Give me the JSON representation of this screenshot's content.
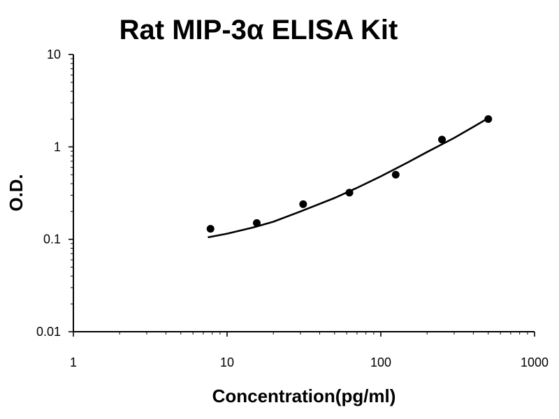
{
  "chart_data": {
    "type": "scatter",
    "title": "Rat MIP-3α ELISA Kit",
    "xlabel": "Concentration(pg/ml)",
    "ylabel": "O.D.",
    "x_scale": "log",
    "y_scale": "log",
    "xlim": [
      1,
      1000
    ],
    "ylim": [
      0.01,
      10
    ],
    "x_ticks": [
      "1",
      "10",
      "100",
      "1000"
    ],
    "y_ticks": [
      "0.01",
      "0.1",
      "1",
      "10"
    ],
    "grid": false,
    "legend": "none",
    "series": [
      {
        "points": [
          {
            "x": 7.8,
            "y": 0.13
          },
          {
            "x": 15.6,
            "y": 0.15
          },
          {
            "x": 31.25,
            "y": 0.24
          },
          {
            "x": 62.5,
            "y": 0.32
          },
          {
            "x": 125,
            "y": 0.5
          },
          {
            "x": 250,
            "y": 1.2
          },
          {
            "x": 500,
            "y": 2.0
          }
        ]
      }
    ],
    "fit_curve": {
      "x": [
        7.5,
        10,
        15,
        20,
        30,
        50,
        70,
        100,
        150,
        200,
        300,
        400,
        500
      ],
      "y": [
        0.105,
        0.115,
        0.135,
        0.155,
        0.2,
        0.28,
        0.36,
        0.48,
        0.68,
        0.88,
        1.25,
        1.65,
        2.05
      ]
    }
  }
}
